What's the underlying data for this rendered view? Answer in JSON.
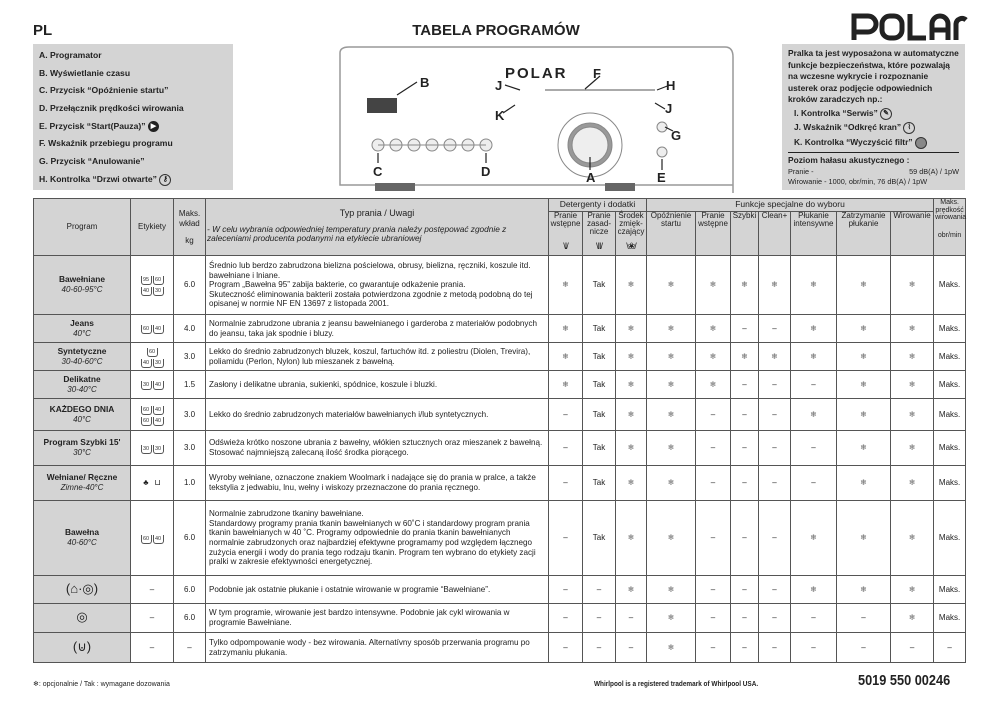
{
  "header": {
    "lang": "PL",
    "title": "TABELA PROGRAMÓW",
    "brand": "POLAR"
  },
  "legend": [
    "A. Programator",
    "B. Wyświetlanie czasu",
    "C. Przycisk “Opóźnienie startu”",
    "D. Przełącznik prędkości wirowania",
    "E. Przycisk “Start(Pauza)”",
    "F. Wskaźnik przebiegu programu",
    "G. Przycisk “Anulowanie”",
    "H. Kontrolka “Drzwi otwarte”"
  ],
  "diagram": {
    "brand": "POLAR",
    "labels": [
      "A",
      "B",
      "C",
      "D",
      "E",
      "F",
      "G",
      "H",
      "J",
      "J",
      "K"
    ]
  },
  "safety": {
    "intro": "Pralka ta jest wyposażona w automatyczne funkcje bezpieczeństwa, które pozwalają na wczesne wykrycie i rozpoznanie usterek oraz podjęcie odpowiednich kroków zaradczych np.:",
    "items": [
      "I.  Kontrolka “Serwis”",
      "J.  Wskaźnik “Odkręć kran”",
      "K.  Kontrolka “Wyczyścić filtr”"
    ],
    "noise_title": "Poziom hałasu akustycznego :",
    "noise": [
      {
        "label": "Pranie -",
        "value": "59 dB(A) / 1pW"
      },
      {
        "label": "Wirowanie - 1000, obr/min,",
        "value": "76 dB(A) / 1pW"
      }
    ]
  },
  "table": {
    "headers": {
      "program": "Program",
      "labels": "Etykiety",
      "load": "Maks. wkład",
      "load_unit": "kg",
      "type": "Typ prania / Uwagi",
      "type_note": "- W celu wybrania odpowiedniej temperatury prania należy postępować zgodnie z zaleceniami producenta podanymi na etykiecie ubraniowej",
      "detergents": "Detergenty i dodatki",
      "functions": "Funkcje specjalne do wyboru",
      "cols": [
        "Pranie wstępne",
        "Pranie zasad-nicze",
        "Środek zmięk-czający",
        "Opóźnienie startu",
        "Pranie wstępne",
        "Szybki",
        "Clean+",
        "Płukanie intensywne",
        "Zatrzymanie płukanie",
        "Wirowanie"
      ],
      "detergent_icons": [
        "\\I/",
        "\\II/",
        "\\❀/"
      ],
      "speed": "Maks. prędkość wirowania",
      "speed_unit": "obr/min"
    },
    "rows": [
      {
        "name": "Bawełniane",
        "temp": "40-60-95°C",
        "tags": [
          "95",
          "60",
          "40",
          "30"
        ],
        "load": "6.0",
        "desc": "Średnio lub berdzo zabrudzona bielizna pościelowa, obrusy, bielizna, ręczniki, koszule itd. bawełniane i lniane.\nProgram „Bawełna 95” zabija bakterie, co gwarantuje odkażenie prania.\nSkuteczność eliminowania bakterii została potwierdzona zgodnie z metodą podobną do tej opisanej w normie NF EN 13697 z listopada 2001.",
        "vals": [
          "❄",
          "Tak",
          "❄",
          "❄",
          "❄",
          "❄",
          "❄",
          "❄",
          "❄",
          "❄",
          "Maks."
        ]
      },
      {
        "name": "Jeans",
        "temp": "40°C",
        "tags": [
          "60",
          "40"
        ],
        "load": "4.0",
        "desc": "Normalnie zabrudzone ubrania z jeansu bawełnianego i garderoba z materiałów podobnych do jeansu, taka jak spodnie i bluzy.",
        "vals": [
          "❄",
          "Tak",
          "❄",
          "❄",
          "❄",
          "–",
          "–",
          "❄",
          "❄",
          "❄",
          "Maks."
        ]
      },
      {
        "name": "Syntetyczne",
        "temp": "30-40-60°C",
        "tags": [
          "60",
          "40",
          "30"
        ],
        "load": "3.0",
        "desc": "Lekko do średnio zabrudzonych bluzek, koszul, fartuchów itd. z poliestru (Diolen, Trevira), poliamidu (Perlon, Nylon) lub mieszanek z bawełną.",
        "vals": [
          "❄",
          "Tak",
          "❄",
          "❄",
          "❄",
          "❄",
          "❄",
          "❄",
          "❄",
          "❄",
          "Maks."
        ]
      },
      {
        "name": "Delikatne",
        "temp": "30-40°C",
        "tags": [
          "30",
          "40"
        ],
        "load": "1.5",
        "desc": "Zasłony i delikatne ubrania, sukienki, spódnice, koszule i bluzki.",
        "vals": [
          "❄",
          "Tak",
          "❄",
          "❄",
          "❄",
          "–",
          "–",
          "–",
          "❄",
          "❄",
          "Maks."
        ]
      },
      {
        "name": "KAŻDEGO DNIA",
        "temp": "40°C",
        "tags": [
          "60",
          "40",
          "60",
          "40"
        ],
        "load": "3.0",
        "desc": "Lekko do średnio zabrudzonych materiałów bawełnianych i/lub syntetycznych.",
        "vals": [
          "–",
          "Tak",
          "❄",
          "❄",
          "–",
          "–",
          "–",
          "❄",
          "❄",
          "❄",
          "Maks."
        ]
      },
      {
        "name": "Program Szybki 15'",
        "temp": "30°C",
        "tags": [
          "30",
          "30"
        ],
        "load": "3.0",
        "desc": "Odświeża krótko noszone ubrania z bawełny, włókien sztucznych oraz mieszanek z bawełną. Stosować najmniejszą zalecaną ilość środka piorącego.",
        "vals": [
          "–",
          "Tak",
          "❄",
          "❄",
          "–",
          "–",
          "–",
          "–",
          "❄",
          "❄",
          "Maks."
        ]
      },
      {
        "name": "Wełniane/ Ręczne",
        "temp": "Zimne-40°C",
        "tags": [
          "wool",
          "hand"
        ],
        "load": "1.0",
        "desc": "Wyroby wełniane, oznaczone znakiem Woolmark i nadające się do prania w pralce, a także tekstylia z jedwabiu, lnu, wełny i wiskozy przeznaczone do prania ręcznego.",
        "vals": [
          "–",
          "Tak",
          "❄",
          "❄",
          "–",
          "–",
          "–",
          "–",
          "❄",
          "❄",
          "Maks."
        ]
      },
      {
        "name": "Bawełna",
        "temp": "40-60°C",
        "tags": [
          "60",
          "40"
        ],
        "load": "6.0",
        "desc": "Normalnie zabrudzone tkaniny bawełniane.\nStandardowy programy prania tkanin bawełnianych w 60˚C  i standardowy program prania tkanin bawełnianych w 40 ˚C. Programy odpowiednie do prania tkanin bawełnianych normalnie zabrudzonych oraz najbardziej efektywne programamy pod względem łącznego zużycia energii i wody do prania tego rodzaju tkanin. Program ten wybrano do etykiety zacji pralki w zakresie efektywności  energetycznej.",
        "vals": [
          "–",
          "Tak",
          "❄",
          "❄",
          "–",
          "–",
          "–",
          "❄",
          "❄",
          "❄",
          "Maks."
        ]
      },
      {
        "name": "",
        "icon": "rinse-spin-icon",
        "temp": "",
        "tags": [],
        "dash": "–",
        "load": "6.0",
        "desc": "Podobnie jak ostatnie płukanie i ostatnie wirowanie w programie “Bawełniane”.",
        "vals": [
          "–",
          "–",
          "❄",
          "❄",
          "–",
          "–",
          "–",
          "❄",
          "❄",
          "❄",
          "Maks."
        ]
      },
      {
        "name": "",
        "icon": "spin-icon",
        "temp": "",
        "tags": [],
        "dash": "–",
        "load": "6.0",
        "desc": "W tym programie, wirowanie jest bardzo intensywne. Podobnie jak cykl wirowania w programie Bawełniane.",
        "vals": [
          "–",
          "–",
          "–",
          "❄",
          "–",
          "–",
          "–",
          "–",
          "–",
          "❄",
          "Maks."
        ]
      },
      {
        "name": "",
        "icon": "drain-icon",
        "temp": "",
        "tags": [],
        "dash": "–",
        "load": "–",
        "desc": "Tylko odpompowanie wody - bez wirowania. Alternatívny sposób przerwania programu po zatrzymaniu płukania.",
        "vals": [
          "–",
          "–",
          "–",
          "❄",
          "–",
          "–",
          "–",
          "–",
          "–",
          "–",
          "–"
        ]
      }
    ]
  },
  "footer": {
    "note": "❄:   opcjonalnie / Tak : wymagane dozowania",
    "trademark": "Whirlpool is a registered trademark of Whirlpool USA.",
    "code": "5019 550 00246"
  }
}
